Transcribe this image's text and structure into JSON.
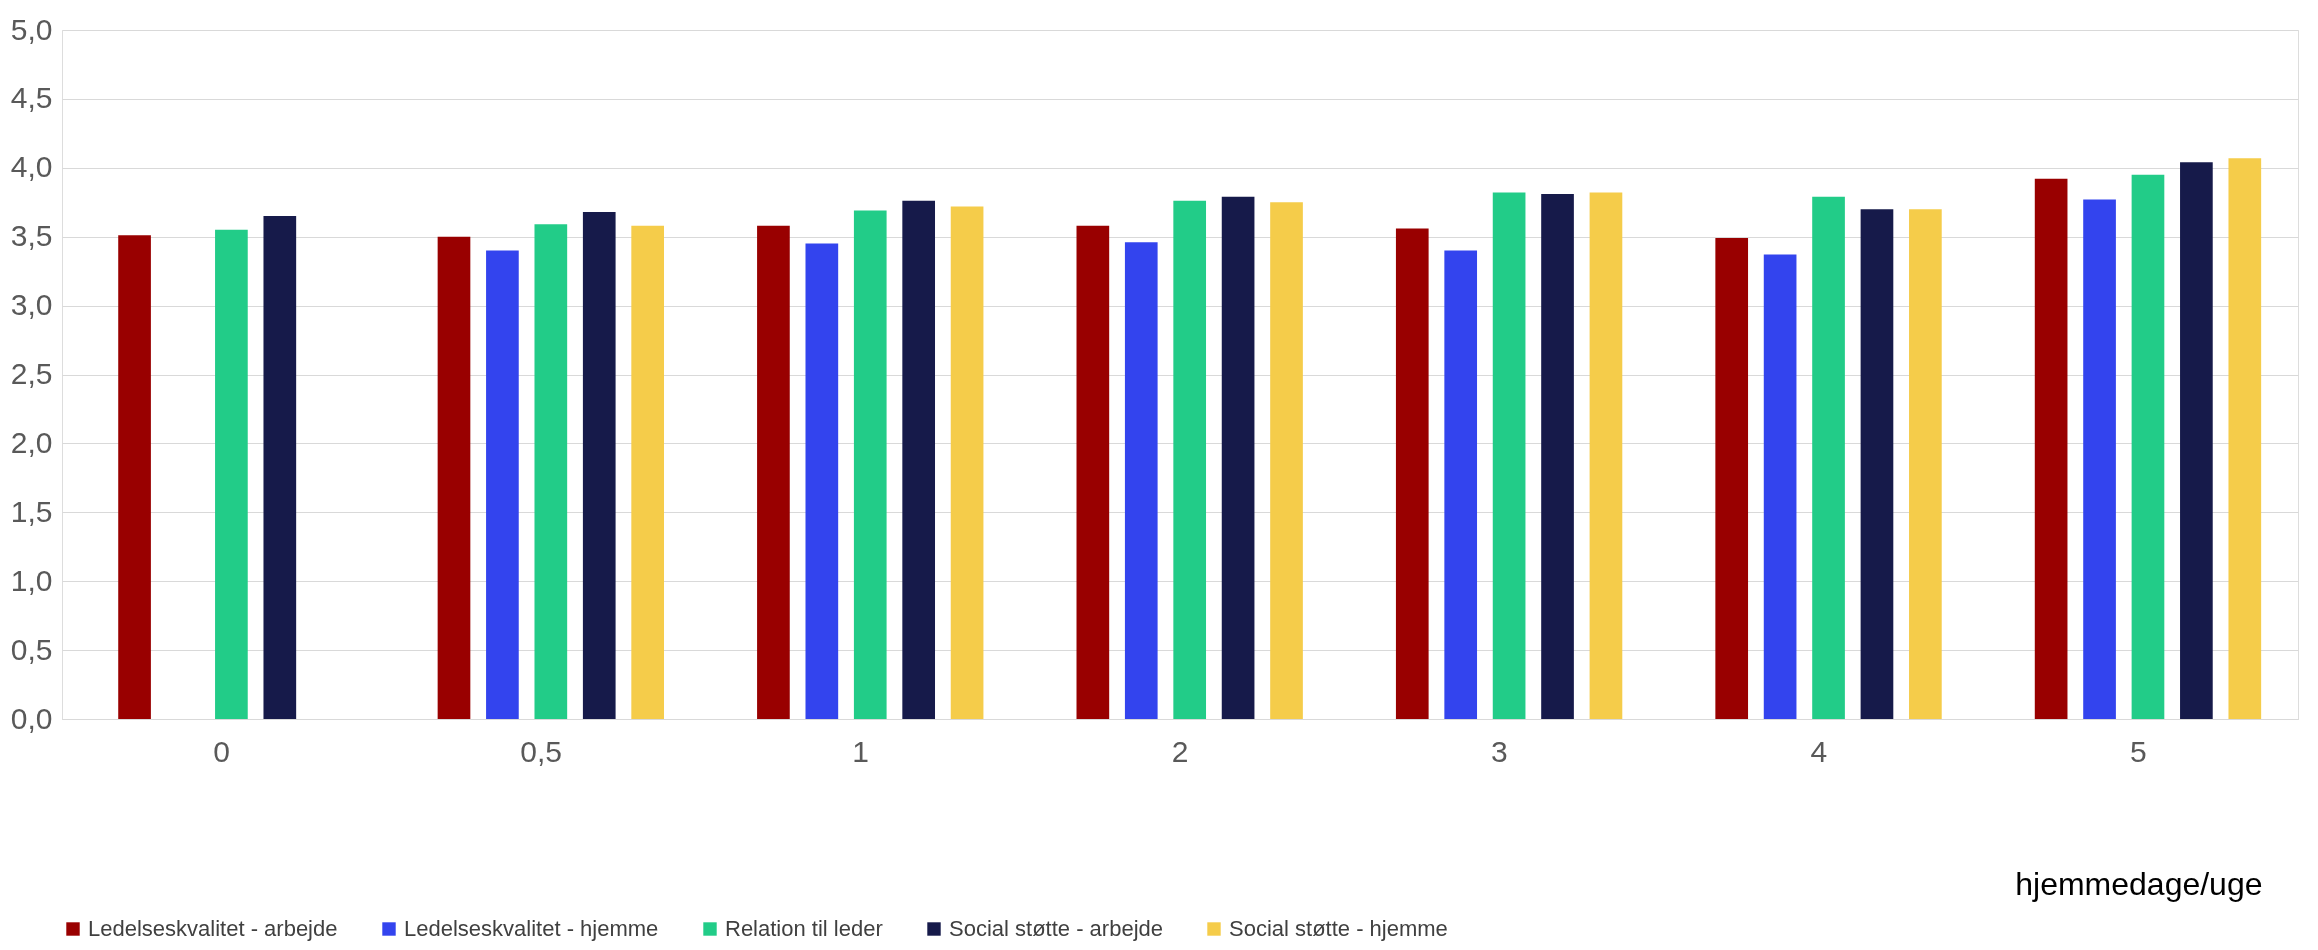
{
  "chart_data": {
    "type": "bar",
    "xlabel": "hjemmedage/uge",
    "categories": [
      "0",
      "0,5",
      "1",
      "2",
      "3",
      "4",
      "5"
    ],
    "series": [
      {
        "name": "Ledelseskvalitet - arbejde",
        "color": "#990000",
        "values": [
          3.51,
          3.5,
          3.58,
          3.58,
          3.56,
          3.49,
          3.92
        ]
      },
      {
        "name": "Ledelseskvalitet - hjemme",
        "color": "#3344ee",
        "values": [
          null,
          3.4,
          3.45,
          3.46,
          3.4,
          3.37,
          3.77
        ]
      },
      {
        "name": "Relation til leder",
        "color": "#22cc88",
        "values": [
          3.55,
          3.59,
          3.69,
          3.76,
          3.82,
          3.79,
          3.95
        ]
      },
      {
        "name": "Social støtte - arbejde",
        "color": "#161a4a",
        "values": [
          3.65,
          3.68,
          3.76,
          3.79,
          3.81,
          3.7,
          4.04
        ]
      },
      {
        "name": "Social støtte - hjemme",
        "color": "#f5cc4a",
        "values": [
          null,
          3.58,
          3.72,
          3.75,
          3.82,
          3.7,
          4.07
        ]
      }
    ],
    "ylim": [
      0,
      5
    ],
    "yticks": [
      {
        "value": 0,
        "label": "0,0"
      },
      {
        "value": 0.5,
        "label": "0,5"
      },
      {
        "value": 1,
        "label": "1,0"
      },
      {
        "value": 1.5,
        "label": "1,5"
      },
      {
        "value": 2,
        "label": "2,0"
      },
      {
        "value": 2.5,
        "label": "2,5"
      },
      {
        "value": 3,
        "label": "3,0"
      },
      {
        "value": 3.5,
        "label": "3,5"
      },
      {
        "value": 4,
        "label": "4,0"
      },
      {
        "value": 4.5,
        "label": "4,5"
      },
      {
        "value": 5,
        "label": "5,0"
      }
    ],
    "grid": "y",
    "legend": "bottom"
  }
}
